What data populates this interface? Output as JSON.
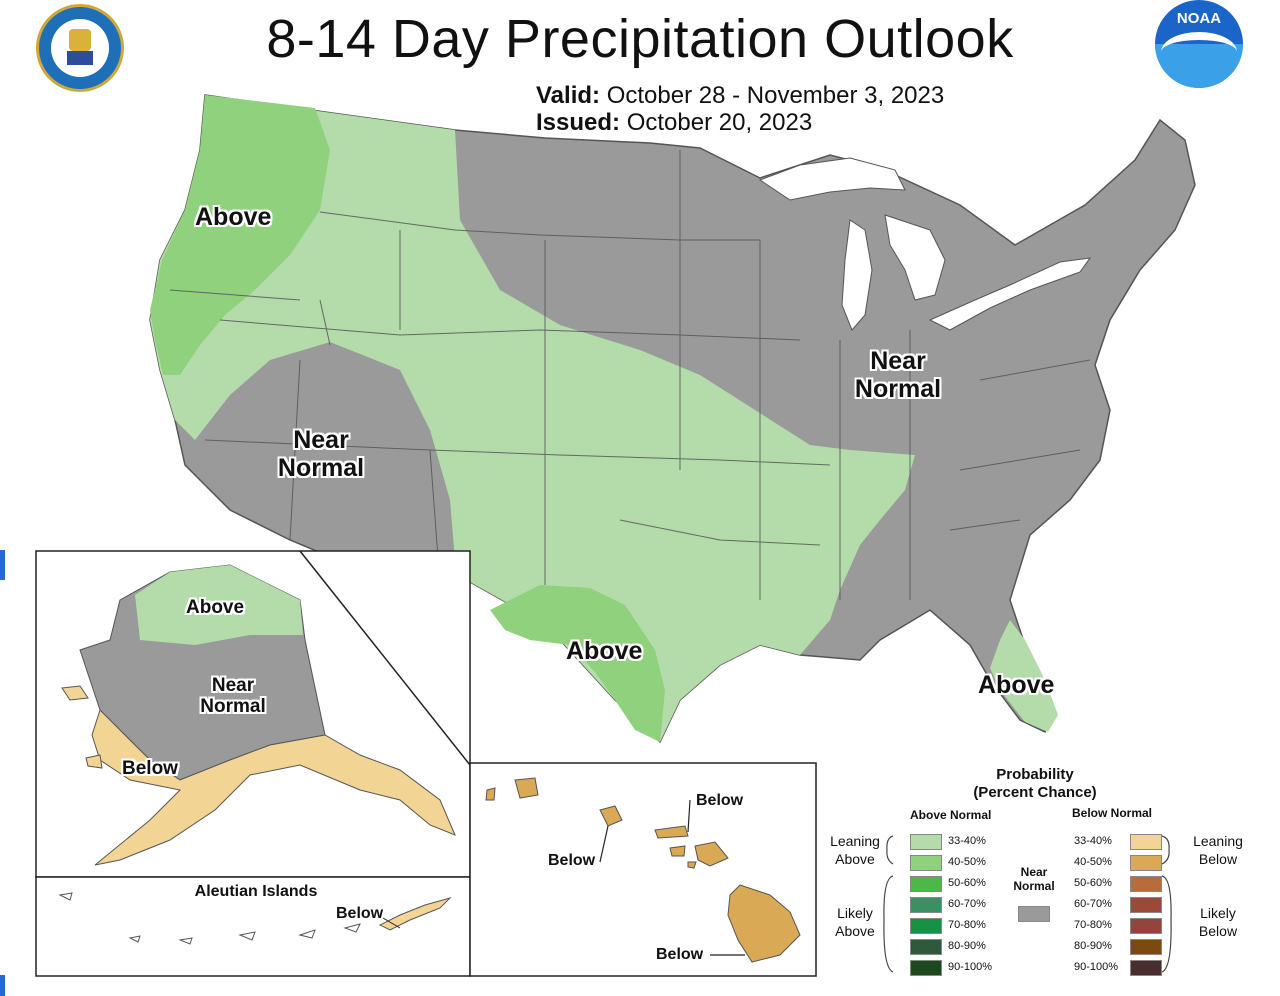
{
  "header": {
    "title": "8-14 Day Precipitation Outlook",
    "valid_label": "Valid:",
    "valid_dates": "October 28 - November 3, 2023",
    "issued_label": "Issued:",
    "issued_date": "October 20, 2023"
  },
  "logos": {
    "left": {
      "text": "DEPARTMENT OF COMMERCE · UNITED STATES OF AMERICA"
    },
    "right": {
      "text": "NOAA"
    }
  },
  "regions": {
    "conus": [
      "Above",
      "Near Normal",
      "Near Normal",
      "Above",
      "Above"
    ],
    "alaska": [
      "Above",
      "Near Normal",
      "Below"
    ],
    "aleutians_title": "Aleutian Islands",
    "aleutians": [
      "Below"
    ],
    "hawaii": [
      "Below",
      "Below",
      "Below"
    ]
  },
  "legend": {
    "title": "Probability (Percent Chance)",
    "title_line1": "Probability",
    "title_line2": "(Percent Chance)",
    "above_header": "Above Normal",
    "below_header": "Below Normal",
    "near_label_1": "Near",
    "near_label_2": "Normal",
    "leaning_above_1": "Leaning",
    "leaning_above_2": "Above",
    "likely_above_1": "Likely",
    "likely_above_2": "Above",
    "leaning_below_1": "Leaning",
    "leaning_below_2": "Below",
    "likely_below_1": "Likely",
    "likely_below_2": "Below",
    "ranges": [
      "33-40%",
      "40-50%",
      "50-60%",
      "60-70%",
      "70-80%",
      "80-90%",
      "90-100%"
    ],
    "above_colors": [
      "#b3dcaa",
      "#8fd17d",
      "#4cb849",
      "#3a8f63",
      "#169245",
      "#2e5a3b",
      "#1c4a1c"
    ],
    "below_colors": [
      "#f2d495",
      "#d9a955",
      "#b96c3b",
      "#9b4a3a",
      "#93443f",
      "#7c4a10",
      "#4a2e2e"
    ],
    "near_color": "#9a9a9a"
  },
  "colors": {
    "near": "#9a9a9a",
    "above_leaning": "#b3dcaa",
    "above_40": "#8fd17d",
    "below_leaning": "#f2d495",
    "below_40": "#d9a955",
    "lakes": "#ffffff"
  }
}
